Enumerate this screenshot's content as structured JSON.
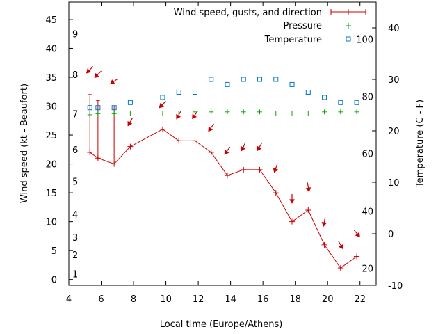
{
  "chart_data": {
    "type": "line",
    "xlabel": "Local time (Europe/Athens)",
    "ylabel": "Wind speed (kt - Beaufort)",
    "y2label": "Temperature (C - F)",
    "xlim": [
      4,
      23
    ],
    "ylim": [
      -1,
      48
    ],
    "y2lim": [
      -10,
      45
    ],
    "x_ticks": [
      4,
      6,
      8,
      10,
      12,
      14,
      16,
      18,
      20,
      22
    ],
    "y_ticks": [
      0,
      5,
      10,
      15,
      20,
      25,
      30,
      35,
      40,
      45
    ],
    "y2_ticks": [
      -10,
      0,
      10,
      20,
      30,
      40
    ],
    "beaufort_labels": [
      {
        "label": "1",
        "kt": 1
      },
      {
        "label": "2",
        "kt": 4.3
      },
      {
        "label": "3",
        "kt": 7.3
      },
      {
        "label": "4",
        "kt": 11.3
      },
      {
        "label": "5",
        "kt": 17
      },
      {
        "label": "6",
        "kt": 22.5
      },
      {
        "label": "7",
        "kt": 28.7
      },
      {
        "label": "8",
        "kt": 35.5
      },
      {
        "label": "9",
        "kt": 42.5
      }
    ],
    "fahrenheit_labels": [
      {
        "label": "20",
        "c": -6.7
      },
      {
        "label": "40",
        "c": 4.4
      },
      {
        "label": "60",
        "c": 15.6
      },
      {
        "label": "80",
        "c": 26.7
      },
      {
        "label": "100",
        "c": 37.8
      }
    ],
    "grid": false,
    "legend_position": "top-right",
    "colors": {
      "wind": "#cc0000",
      "pressure": "#00aa00",
      "temperature": "#0077cc"
    },
    "series": [
      {
        "name": "Wind speed, gusts, and direction",
        "axis": "left",
        "x": [
          5.3,
          5.8,
          6.8,
          7.8,
          9.8,
          10.8,
          11.8,
          12.8,
          13.8,
          14.8,
          15.8,
          16.8,
          17.8,
          18.8,
          19.8,
          20.8,
          21.8
        ],
        "values": [
          22,
          21,
          20,
          23,
          26,
          24,
          24,
          22,
          18,
          19,
          19,
          15,
          10,
          12,
          6,
          2,
          4
        ],
        "gusts": [
          32,
          31,
          30,
          null,
          null,
          null,
          null,
          null,
          null,
          null,
          null,
          null,
          null,
          null,
          null,
          null,
          null
        ],
        "direction_arrows": [
          {
            "x": 5.3,
            "kt": 36.3,
            "heading_deg": 135
          },
          {
            "x": 5.8,
            "kt": 35.5,
            "heading_deg": 135
          },
          {
            "x": 6.8,
            "kt": 34.3,
            "heading_deg": 145
          },
          {
            "x": 7.8,
            "kt": 27.3,
            "heading_deg": 120
          },
          {
            "x": 9.8,
            "kt": 30.3,
            "heading_deg": 135
          },
          {
            "x": 10.8,
            "kt": 28.5,
            "heading_deg": 120
          },
          {
            "x": 11.8,
            "kt": 28.5,
            "heading_deg": 125
          },
          {
            "x": 12.8,
            "kt": 26.3,
            "heading_deg": 125
          },
          {
            "x": 13.8,
            "kt": 22.3,
            "heading_deg": 125
          },
          {
            "x": 14.8,
            "kt": 23.0,
            "heading_deg": 115
          },
          {
            "x": 15.8,
            "kt": 23.0,
            "heading_deg": 120
          },
          {
            "x": 16.8,
            "kt": 19.3,
            "heading_deg": 110
          },
          {
            "x": 17.8,
            "kt": 14.0,
            "heading_deg": 90
          },
          {
            "x": 18.8,
            "kt": 16.0,
            "heading_deg": 80
          },
          {
            "x": 19.8,
            "kt": 10.0,
            "heading_deg": 100
          },
          {
            "x": 20.8,
            "kt": 6.0,
            "heading_deg": 60
          },
          {
            "x": 21.8,
            "kt": 8.0,
            "heading_deg": 50
          }
        ]
      },
      {
        "name": "Pressure",
        "axis": "left",
        "x": [
          5.3,
          5.8,
          6.8,
          7.8,
          9.8,
          10.8,
          11.8,
          12.8,
          13.8,
          14.8,
          15.8,
          16.8,
          17.8,
          18.8,
          19.8,
          20.8,
          21.8
        ],
        "values": [
          28.5,
          28.7,
          28.7,
          28.8,
          28.8,
          28.8,
          29,
          29,
          29,
          29,
          29,
          28.8,
          28.8,
          28.8,
          29,
          29,
          29
        ]
      },
      {
        "name": "Temperature",
        "axis": "right",
        "x": [
          5.3,
          5.8,
          6.8,
          7.8,
          9.8,
          10.8,
          11.8,
          12.8,
          13.8,
          14.8,
          15.8,
          16.8,
          17.8,
          18.8,
          19.8,
          20.8,
          21.8
        ],
        "values": [
          24.5,
          24.5,
          24.5,
          25.5,
          26.5,
          27.5,
          27.5,
          30,
          29,
          30,
          30,
          30,
          29,
          27.5,
          26.5,
          25.5,
          25.5
        ]
      }
    ]
  }
}
